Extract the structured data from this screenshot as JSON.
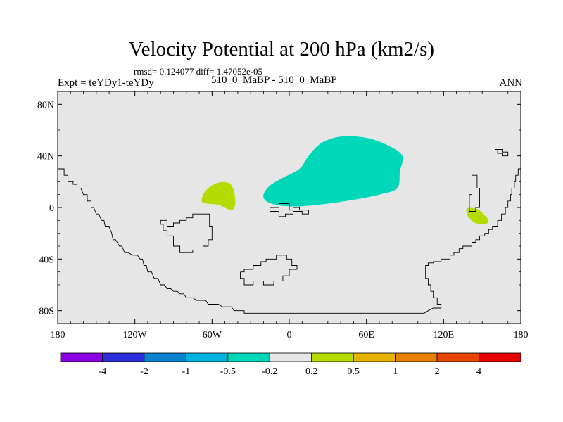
{
  "header": {
    "title": "Velocity Potential at 200 hPa (km2/s)",
    "stats": "rmsd= 0.124077 diff= 1.47052e-05",
    "left_label": "Expt = teYDy1-teYDy",
    "center_label": "510_0_MaBP - 510_0_MaBP",
    "right_label": "ANN"
  },
  "chart_data": {
    "type": "contour-map",
    "title": "Velocity Potential at 200 hPa (km2/s)",
    "projection": "cylindrical-equidistant",
    "xlim": [
      -180,
      180
    ],
    "ylim": [
      -90,
      90
    ],
    "x_ticks": [
      {
        "value": -180,
        "label": "180"
      },
      {
        "value": -120,
        "label": "120W"
      },
      {
        "value": -60,
        "label": "60W"
      },
      {
        "value": 0,
        "label": "0"
      },
      {
        "value": 60,
        "label": "60E"
      },
      {
        "value": 120,
        "label": "120E"
      },
      {
        "value": 180,
        "label": "180"
      }
    ],
    "y_ticks": [
      {
        "value": 80,
        "label": "80N"
      },
      {
        "value": 40,
        "label": "40N"
      },
      {
        "value": 0,
        "label": "0"
      },
      {
        "value": -40,
        "label": "40S"
      },
      {
        "value": -80,
        "label": "80S"
      }
    ],
    "background_color": "#e6e6e6",
    "colorbar": {
      "colors": [
        "#8c00e6",
        "#2d2ddc",
        "#0a82d2",
        "#00b4e1",
        "#00d7b9",
        "#e6e6e6",
        "#b4dc00",
        "#e6b400",
        "#e68200",
        "#e64600",
        "#e60000"
      ],
      "labels": [
        "-4",
        "-2",
        "-1",
        "-0.5",
        "-0.2",
        "0.2",
        "0.5",
        "1",
        "2",
        "4"
      ]
    },
    "anomaly_regions": [
      {
        "name": "central-asia-negative",
        "category": "-0.5 to -0.2",
        "color": "#00d7b9",
        "outline": [
          [
            -20,
            10
          ],
          [
            -15,
            17
          ],
          [
            -5,
            23
          ],
          [
            8,
            30
          ],
          [
            15,
            40
          ],
          [
            25,
            50
          ],
          [
            40,
            55
          ],
          [
            60,
            54
          ],
          [
            77,
            48
          ],
          [
            88,
            40
          ],
          [
            86,
            28
          ],
          [
            84,
            15
          ],
          [
            70,
            10
          ],
          [
            50,
            6
          ],
          [
            30,
            3
          ],
          [
            10,
            1
          ],
          [
            0,
            1
          ],
          [
            -10,
            2
          ],
          [
            -18,
            5
          ]
        ]
      },
      {
        "name": "south-america-positive",
        "category": "0.2 to 0.5",
        "color": "#b4dc00",
        "outline": [
          [
            -68,
            5
          ],
          [
            -65,
            13
          ],
          [
            -56,
            19
          ],
          [
            -47,
            19
          ],
          [
            -43,
            13
          ],
          [
            -42,
            3
          ],
          [
            -45,
            -2
          ],
          [
            -55,
            2
          ],
          [
            -64,
            3
          ]
        ]
      },
      {
        "name": "west-pacific-positive",
        "category": "0.2 to 0.5",
        "color": "#b4dc00",
        "outline": [
          [
            138,
            -1
          ],
          [
            145,
            -1
          ],
          [
            151,
            -5
          ],
          [
            155,
            -11
          ],
          [
            149,
            -13
          ],
          [
            143,
            -11
          ],
          [
            139,
            -7
          ]
        ]
      }
    ],
    "coastlines": [
      [
        [
          -180,
          30
        ],
        [
          -175,
          30
        ],
        [
          -175,
          25
        ],
        [
          -172,
          25
        ],
        [
          -172,
          20
        ],
        [
          -168,
          20
        ],
        [
          -168,
          18
        ],
        [
          -165,
          18
        ],
        [
          -165,
          15
        ],
        [
          -162,
          15
        ],
        [
          -160,
          10
        ],
        [
          -157,
          10
        ],
        [
          -157,
          5
        ],
        [
          -154,
          5
        ],
        [
          -154,
          0
        ],
        [
          -152,
          0
        ],
        [
          -150,
          -5
        ],
        [
          -148,
          -5
        ],
        [
          -146,
          -10
        ],
        [
          -144,
          -10
        ],
        [
          -143,
          -15
        ],
        [
          -140,
          -15
        ],
        [
          -138,
          -20
        ],
        [
          -137,
          -25
        ],
        [
          -135,
          -25
        ],
        [
          -132,
          -30
        ],
        [
          -130,
          -30
        ],
        [
          -128,
          -35
        ],
        [
          -125,
          -35
        ],
        [
          -122,
          -37
        ],
        [
          -118,
          -37
        ],
        [
          -116,
          -40
        ],
        [
          -114,
          -40
        ],
        [
          -113,
          -45
        ],
        [
          -111,
          -45
        ],
        [
          -110,
          -50
        ],
        [
          -107,
          -50
        ],
        [
          -105,
          -55
        ],
        [
          -102,
          -55
        ],
        [
          -100,
          -60
        ],
        [
          -97,
          -60
        ],
        [
          -95,
          -63
        ],
        [
          -92,
          -63
        ],
        [
          -90,
          -65
        ],
        [
          -87,
          -65
        ],
        [
          -85,
          -67
        ],
        [
          -82,
          -67
        ],
        [
          -80,
          -70
        ],
        [
          -75,
          -70
        ],
        [
          -72,
          -72
        ],
        [
          -65,
          -72
        ],
        [
          -63,
          -75
        ],
        [
          -55,
          -75
        ],
        [
          -52,
          -77
        ],
        [
          -45,
          -77
        ],
        [
          -43,
          -80
        ],
        [
          -35,
          -80
        ],
        [
          -35,
          -82
        ],
        [
          35,
          -82
        ],
        [
          85,
          -82
        ],
        [
          105,
          -82
        ],
        [
          108,
          -80
        ],
        [
          112,
          -78
        ],
        [
          118,
          -78
        ],
        [
          118,
          -75
        ],
        [
          115,
          -75
        ],
        [
          115,
          -70
        ],
        [
          112,
          -70
        ],
        [
          112,
          -65
        ],
        [
          110,
          -65
        ],
        [
          110,
          -60
        ],
        [
          108,
          -60
        ],
        [
          108,
          -55
        ],
        [
          106,
          -55
        ],
        [
          106,
          -45
        ],
        [
          108,
          -45
        ],
        [
          108,
          -43
        ],
        [
          112,
          -43
        ],
        [
          112,
          -42
        ],
        [
          118,
          -42
        ],
        [
          118,
          -40
        ],
        [
          125,
          -40
        ],
        [
          125,
          -37
        ],
        [
          128,
          -37
        ],
        [
          128,
          -35
        ],
        [
          132,
          -35
        ],
        [
          132,
          -32
        ],
        [
          135,
          -32
        ],
        [
          135,
          -30
        ],
        [
          142,
          -30
        ],
        [
          142,
          -27
        ],
        [
          145,
          -27
        ],
        [
          145,
          -25
        ],
        [
          148,
          -25
        ],
        [
          148,
          -22
        ],
        [
          152,
          -22
        ],
        [
          152,
          -20
        ],
        [
          155,
          -20
        ],
        [
          155,
          -17
        ],
        [
          158,
          -17
        ],
        [
          158,
          -15
        ],
        [
          162,
          -15
        ],
        [
          162,
          -10
        ],
        [
          165,
          -10
        ],
        [
          165,
          -5
        ],
        [
          168,
          -5
        ],
        [
          168,
          0
        ],
        [
          170,
          0
        ],
        [
          170,
          5
        ],
        [
          172,
          5
        ],
        [
          172,
          10
        ],
        [
          173,
          10
        ],
        [
          173,
          15
        ],
        [
          175,
          15
        ],
        [
          175,
          20
        ],
        [
          176,
          20
        ],
        [
          176,
          25
        ],
        [
          178,
          25
        ],
        [
          178,
          30
        ],
        [
          180,
          30
        ]
      ],
      [
        [
          -15,
          0
        ],
        [
          -8,
          0
        ],
        [
          -8,
          3
        ],
        [
          0,
          3
        ],
        [
          0,
          -2
        ],
        [
          3,
          -2
        ],
        [
          3,
          0
        ],
        [
          8,
          0
        ],
        [
          8,
          -2
        ],
        [
          15,
          -2
        ],
        [
          15,
          -5
        ],
        [
          10,
          -5
        ],
        [
          10,
          -3
        ],
        [
          3,
          -3
        ],
        [
          3,
          -5
        ],
        [
          -3,
          -5
        ],
        [
          -3,
          -7
        ],
        [
          -8,
          -7
        ],
        [
          -8,
          -3
        ],
        [
          -15,
          -3
        ],
        [
          -15,
          0
        ]
      ],
      [
        [
          -100,
          -10
        ],
        [
          -95,
          -10
        ],
        [
          -95,
          -15
        ],
        [
          -90,
          -15
        ],
        [
          -90,
          -12
        ],
        [
          -85,
          -12
        ],
        [
          -85,
          -10
        ],
        [
          -80,
          -10
        ],
        [
          -80,
          -8
        ],
        [
          -75,
          -8
        ],
        [
          -75,
          -5
        ],
        [
          -62,
          -5
        ],
        [
          -62,
          -15
        ],
        [
          -60,
          -15
        ],
        [
          -60,
          -25
        ],
        [
          -63,
          -25
        ],
        [
          -63,
          -30
        ],
        [
          -67,
          -30
        ],
        [
          -67,
          -33
        ],
        [
          -75,
          -33
        ],
        [
          -75,
          -35
        ],
        [
          -85,
          -35
        ],
        [
          -85,
          -30
        ],
        [
          -90,
          -30
        ],
        [
          -90,
          -22
        ],
        [
          -95,
          -22
        ],
        [
          -95,
          -18
        ],
        [
          -98,
          -18
        ],
        [
          -98,
          -13
        ],
        [
          -100,
          -13
        ],
        [
          -100,
          -10
        ]
      ],
      [
        [
          -38,
          -50
        ],
        [
          -35,
          -50
        ],
        [
          -35,
          -48
        ],
        [
          -28,
          -48
        ],
        [
          -28,
          -45
        ],
        [
          -22,
          -45
        ],
        [
          -22,
          -42
        ],
        [
          -18,
          -42
        ],
        [
          -18,
          -40
        ],
        [
          -10,
          -40
        ],
        [
          -10,
          -37
        ],
        [
          -2,
          -37
        ],
        [
          -2,
          -40
        ],
        [
          2,
          -40
        ],
        [
          2,
          -45
        ],
        [
          6,
          -45
        ],
        [
          6,
          -48
        ],
        [
          0,
          -48
        ],
        [
          0,
          -53
        ],
        [
          -5,
          -53
        ],
        [
          -5,
          -57
        ],
        [
          -12,
          -57
        ],
        [
          -12,
          -60
        ],
        [
          -20,
          -60
        ],
        [
          -20,
          -57
        ],
        [
          -28,
          -57
        ],
        [
          -28,
          -60
        ],
        [
          -35,
          -60
        ],
        [
          -35,
          -55
        ],
        [
          -38,
          -55
        ],
        [
          -38,
          -50
        ]
      ],
      [
        [
          140,
          -3
        ],
        [
          140,
          10
        ],
        [
          142,
          10
        ],
        [
          142,
          25
        ],
        [
          146,
          25
        ],
        [
          146,
          15
        ],
        [
          148,
          15
        ],
        [
          148,
          0
        ],
        [
          145,
          0
        ],
        [
          145,
          -3
        ],
        [
          140,
          -3
        ]
      ],
      [
        [
          160,
          45
        ],
        [
          162,
          45
        ],
        [
          162,
          42
        ],
        [
          166,
          42
        ],
        [
          166,
          40
        ],
        [
          170,
          40
        ],
        [
          170,
          43
        ],
        [
          166,
          43
        ],
        [
          166,
          45
        ],
        [
          160,
          45
        ]
      ]
    ]
  }
}
